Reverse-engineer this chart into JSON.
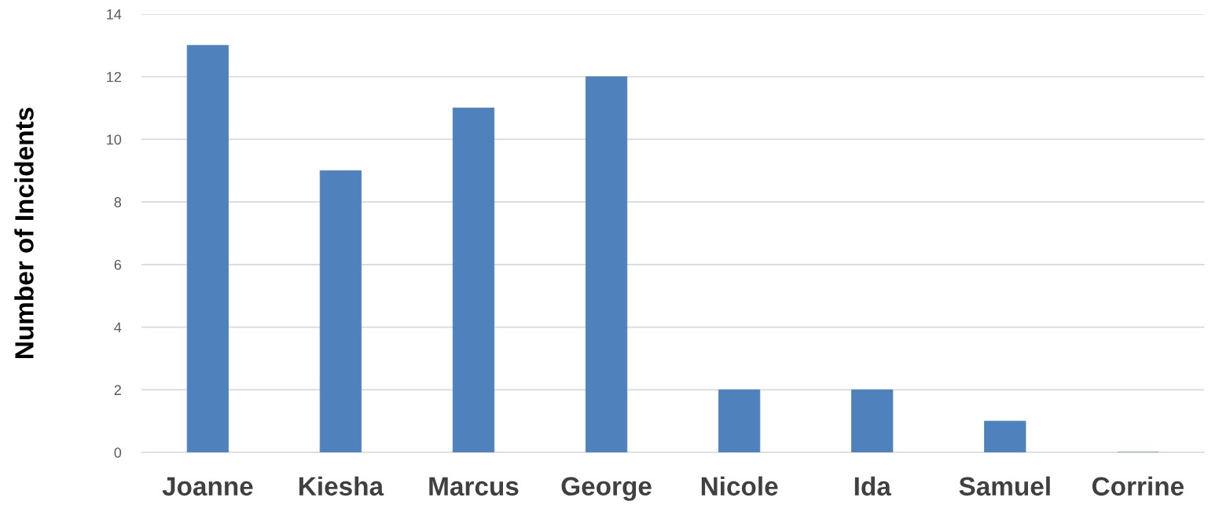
{
  "chart_data": {
    "type": "bar",
    "ylabel": "Number of Incidents",
    "categories": [
      "Joanne",
      "Kiesha",
      "Marcus",
      "George",
      "Nicole",
      "Ida",
      "Samuel",
      "Corrine"
    ],
    "values": [
      13,
      9,
      11,
      12,
      2,
      2,
      1,
      0
    ],
    "color": "#4f81bd",
    "ylim": [
      0,
      14
    ],
    "yticks": [
      0,
      2,
      4,
      6,
      8,
      10,
      12,
      14
    ],
    "grid": "y"
  }
}
